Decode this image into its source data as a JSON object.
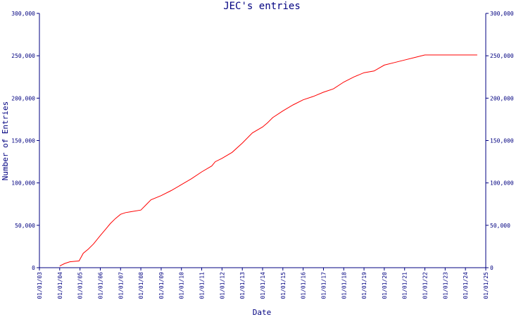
{
  "chart_data": {
    "type": "line",
    "title": "JEC's entries",
    "xlabel": "Date",
    "ylabel": "Number of Entries",
    "ylim": [
      0,
      300000
    ],
    "xlim": [
      "2003-01-01",
      "2025-01-01"
    ],
    "y_ticks": [
      "0",
      "50,000",
      "100,000",
      "150,000",
      "200,000",
      "250,000",
      "300,000"
    ],
    "y_tick_values": [
      0,
      50000,
      100000,
      150000,
      200000,
      250000,
      300000
    ],
    "x_tick_values": [
      "2003-01-01",
      "2004-01-01",
      "2005-01-01",
      "2006-01-01",
      "2007-01-01",
      "2008-01-01",
      "2009-01-01",
      "2010-01-01",
      "2011-01-01",
      "2012-01-01",
      "2013-01-01",
      "2014-01-01",
      "2015-01-01",
      "2016-01-01",
      "2017-01-01",
      "2018-01-01",
      "2019-01-01",
      "2020-01-01",
      "2021-01-01",
      "2022-01-01",
      "2023-01-01",
      "2024-01-01",
      "2025-01-01"
    ],
    "x_ticks": [
      "01/01/03",
      "01/01/04",
      "01/01/05",
      "01/01/06",
      "01/01/07",
      "01/01/08",
      "01/01/09",
      "01/01/10",
      "01/01/11",
      "01/01/12",
      "01/01/13",
      "01/01/14",
      "01/01/15",
      "01/01/16",
      "01/01/17",
      "01/01/18",
      "01/01/19",
      "01/01/20",
      "01/01/21",
      "01/01/22",
      "01/01/23",
      "01/01/24",
      "01/01/25"
    ],
    "grid": false,
    "right_axis": true,
    "series": [
      {
        "color": "#ff0000",
        "points": [
          [
            "2004-01-01",
            2000
          ],
          [
            "2004-04-01",
            5000
          ],
          [
            "2004-07-01",
            7000
          ],
          [
            "2004-12-15",
            8000
          ],
          [
            "2005-03-01",
            17000
          ],
          [
            "2005-06-01",
            22000
          ],
          [
            "2005-09-01",
            28000
          ],
          [
            "2006-01-01",
            38000
          ],
          [
            "2006-04-01",
            45000
          ],
          [
            "2006-07-01",
            52000
          ],
          [
            "2006-10-01",
            58000
          ],
          [
            "2007-01-01",
            63000
          ],
          [
            "2007-04-01",
            65000
          ],
          [
            "2007-07-01",
            66000
          ],
          [
            "2008-01-01",
            68000
          ],
          [
            "2008-04-01",
            74000
          ],
          [
            "2008-07-01",
            80000
          ],
          [
            "2009-01-01",
            85000
          ],
          [
            "2009-07-01",
            91000
          ],
          [
            "2010-01-01",
            98000
          ],
          [
            "2010-07-01",
            105000
          ],
          [
            "2011-01-01",
            113000
          ],
          [
            "2011-07-01",
            120000
          ],
          [
            "2011-09-01",
            125000
          ],
          [
            "2012-01-01",
            129000
          ],
          [
            "2012-07-01",
            136000
          ],
          [
            "2013-01-01",
            147000
          ],
          [
            "2013-07-01",
            159000
          ],
          [
            "2014-01-01",
            166000
          ],
          [
            "2014-04-01",
            171000
          ],
          [
            "2014-07-01",
            177000
          ],
          [
            "2015-01-01",
            185000
          ],
          [
            "2015-07-01",
            192000
          ],
          [
            "2016-01-01",
            198000
          ],
          [
            "2016-07-01",
            202000
          ],
          [
            "2017-01-01",
            207000
          ],
          [
            "2017-07-01",
            211000
          ],
          [
            "2018-01-01",
            219000
          ],
          [
            "2018-07-01",
            225000
          ],
          [
            "2019-01-01",
            230000
          ],
          [
            "2019-07-01",
            232000
          ],
          [
            "2020-01-01",
            239000
          ],
          [
            "2020-07-01",
            242000
          ],
          [
            "2021-01-01",
            245000
          ],
          [
            "2021-07-01",
            248000
          ],
          [
            "2022-01-01",
            251000
          ],
          [
            "2023-01-01",
            251000
          ],
          [
            "2024-01-01",
            251000
          ],
          [
            "2024-08-01",
            251000
          ]
        ]
      }
    ]
  }
}
